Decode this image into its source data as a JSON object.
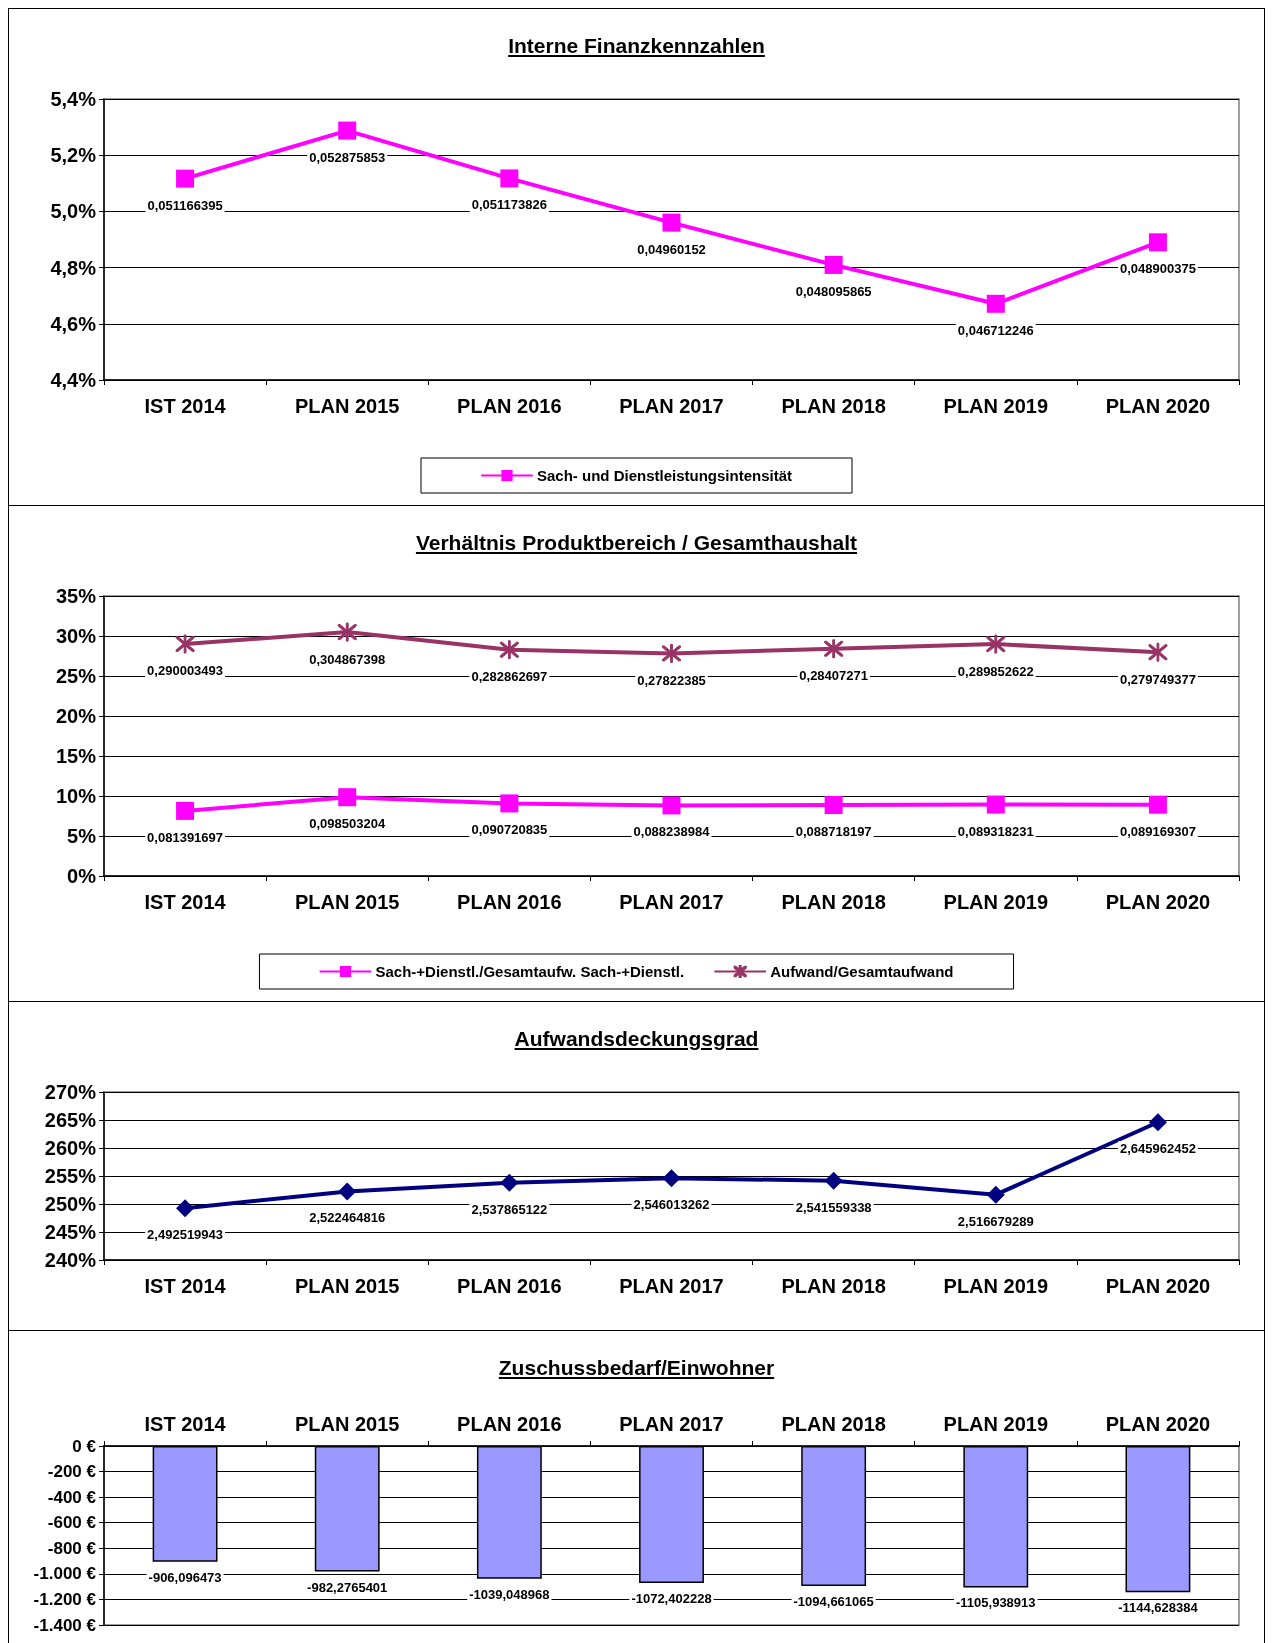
{
  "chart_data": [
    {
      "type": "line",
      "title": "Interne Finanzkennzahlen",
      "categories": [
        "IST 2014",
        "PLAN 2015",
        "PLAN 2016",
        "PLAN 2017",
        "PLAN 2018",
        "PLAN 2019",
        "PLAN 2020"
      ],
      "series": [
        {
          "name": "Sach- und Dienstleistungsintensität",
          "color": "#ff00ff",
          "marker": "square",
          "values": [
            0.051166395,
            0.052875853,
            0.051173826,
            0.04960152,
            0.048095865,
            0.046712246,
            0.048900375
          ],
          "value_labels": [
            "0,051166395",
            "0,052875853",
            "0,051173826",
            "0,04960152",
            "0,048095865",
            "0,046712246",
            "0,048900375"
          ]
        }
      ],
      "ylim": [
        0.044,
        0.054
      ],
      "yticks": [
        {
          "value": 0.044,
          "label": "4,4%"
        },
        {
          "value": 0.046,
          "label": "4,6%"
        },
        {
          "value": 0.048,
          "label": "4,8%"
        },
        {
          "value": 0.05,
          "label": "5,0%"
        },
        {
          "value": 0.052,
          "label": "5,2%"
        },
        {
          "value": 0.054,
          "label": "5,4%"
        }
      ],
      "grid": "y",
      "legend": "bottom"
    },
    {
      "type": "line",
      "title": "Verhältnis Produktbereich / Gesamthaushalt",
      "categories": [
        "IST 2014",
        "PLAN 2015",
        "PLAN 2016",
        "PLAN 2017",
        "PLAN 2018",
        "PLAN 2019",
        "PLAN 2020"
      ],
      "series": [
        {
          "name": "Sach-+Dienstl./Gesamtaufw. Sach-+Dienstl.",
          "color": "#ff00ff",
          "marker": "square",
          "values": [
            0.081391697,
            0.098503204,
            0.090720835,
            0.088238984,
            0.088718197,
            0.089318231,
            0.089169307
          ],
          "value_labels": [
            "0,081391697",
            "0,098503204",
            "0,090720835",
            "0,088238984",
            "0,088718197",
            "0,089318231",
            "0,089169307"
          ]
        },
        {
          "name": "Aufwand/Gesamtaufwand",
          "color": "#993366",
          "marker": "cross",
          "values": [
            0.290003493,
            0.304867398,
            0.282862697,
            0.27822385,
            0.28407271,
            0.289852622,
            0.279749377
          ],
          "value_labels": [
            "0,290003493",
            "0,304867398",
            "0,282862697",
            "0,27822385",
            "0,28407271",
            "0,289852622",
            "0,279749377"
          ]
        }
      ],
      "ylim": [
        0,
        0.35
      ],
      "yticks": [
        {
          "value": 0,
          "label": "0%"
        },
        {
          "value": 0.05,
          "label": "5%"
        },
        {
          "value": 0.1,
          "label": "10%"
        },
        {
          "value": 0.15,
          "label": "15%"
        },
        {
          "value": 0.2,
          "label": "20%"
        },
        {
          "value": 0.25,
          "label": "25%"
        },
        {
          "value": 0.3,
          "label": "30%"
        },
        {
          "value": 0.35,
          "label": "35%"
        }
      ],
      "grid": "y",
      "legend": "bottom"
    },
    {
      "type": "line",
      "title": "Aufwandsdeckungsgrad",
      "categories": [
        "IST 2014",
        "PLAN 2015",
        "PLAN 2016",
        "PLAN 2017",
        "PLAN 2018",
        "PLAN 2019",
        "PLAN 2020"
      ],
      "series": [
        {
          "color": "#000080",
          "marker": "diamond",
          "values": [
            2.492519943,
            2.522464816,
            2.537865122,
            2.546013262,
            2.541559338,
            2.516679289,
            2.645962452
          ],
          "value_labels": [
            "2,492519943",
            "2,522464816",
            "2,537865122",
            "2,546013262",
            "2,541559338",
            "2,516679289",
            "2,645962452"
          ]
        }
      ],
      "ylim": [
        2.4,
        2.7
      ],
      "yticks": [
        {
          "value": 2.4,
          "label": "240%"
        },
        {
          "value": 2.45,
          "label": "245%"
        },
        {
          "value": 2.5,
          "label": "250%"
        },
        {
          "value": 2.55,
          "label": "255%"
        },
        {
          "value": 2.6,
          "label": "260%"
        },
        {
          "value": 2.65,
          "label": "265%"
        },
        {
          "value": 2.7,
          "label": "270%"
        }
      ],
      "grid": "y"
    },
    {
      "type": "bar",
      "title": "Zuschussbedarf/Einwohner",
      "categories": [
        "IST 2014",
        "PLAN 2015",
        "PLAN 2016",
        "PLAN 2017",
        "PLAN 2018",
        "PLAN 2019",
        "PLAN 2020"
      ],
      "series": [
        {
          "color": "#9999ff",
          "values": [
            -906.096473,
            -982.2765401,
            -1039.048968,
            -1072.402228,
            -1094.661065,
            -1105.938913,
            -1144.628384
          ],
          "value_labels": [
            "-906,096473",
            "-982,2765401",
            "-1039,048968",
            "-1072,402228",
            "-1094,661065",
            "-1105,938913",
            "-1144,628384"
          ]
        }
      ],
      "ylim": [
        -1400,
        0
      ],
      "yticks": [
        {
          "value": -1400,
          "label": "-1.400 €"
        },
        {
          "value": -1200,
          "label": "-1.200 €"
        },
        {
          "value": -1000,
          "label": "-1.000 €"
        },
        {
          "value": -800,
          "label": "-800 €"
        },
        {
          "value": -600,
          "label": "-600 €"
        },
        {
          "value": -400,
          "label": "-400 €"
        },
        {
          "value": -200,
          "label": "-200 €"
        },
        {
          "value": 0,
          "label": "0 €"
        }
      ],
      "grid": "y"
    }
  ]
}
